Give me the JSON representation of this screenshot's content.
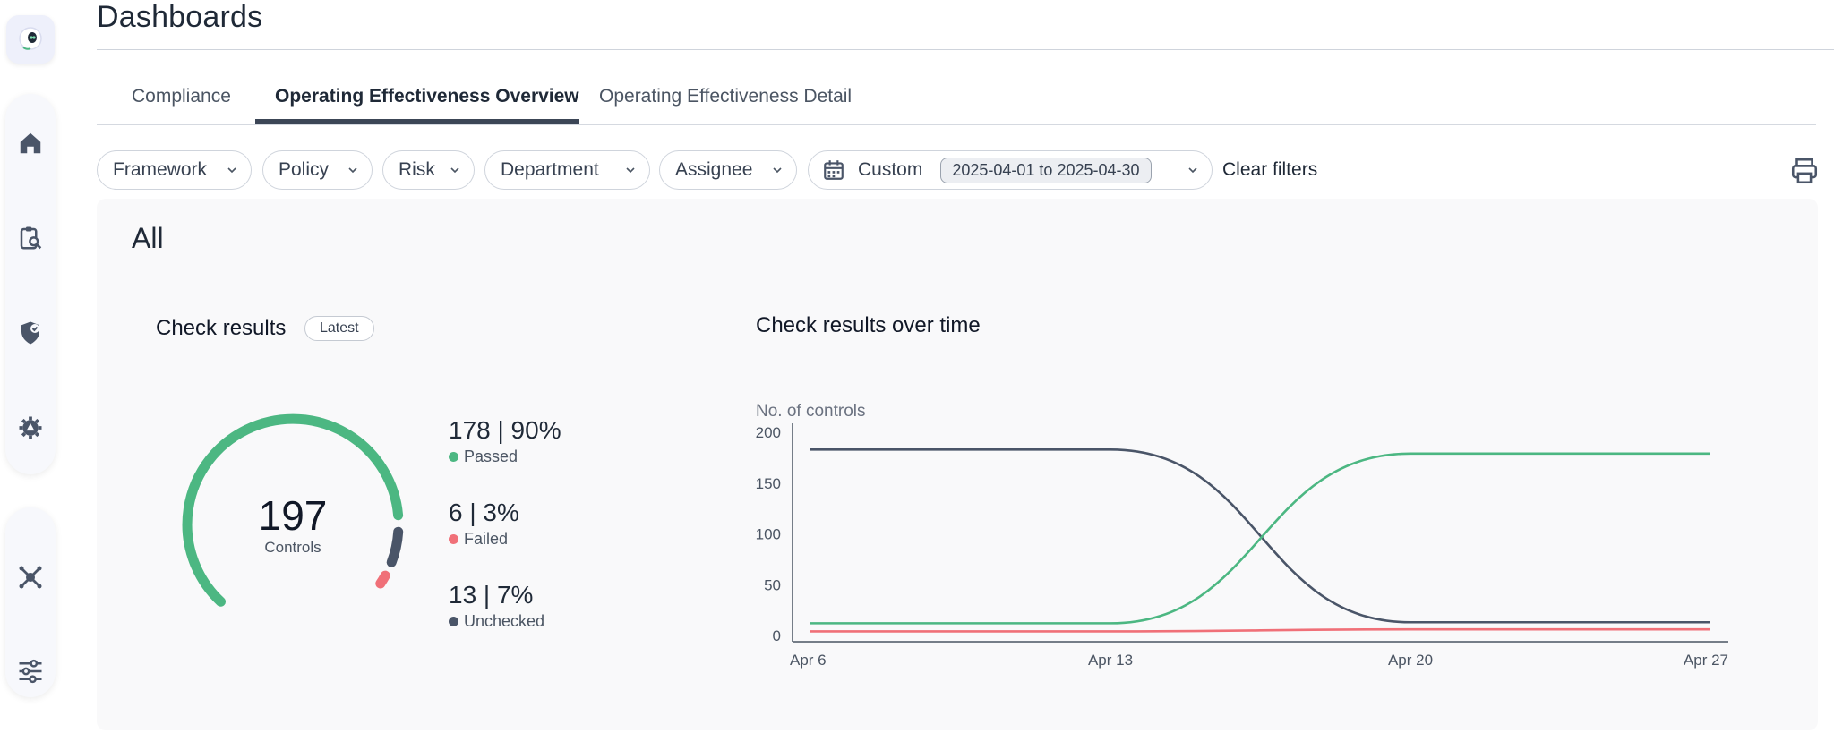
{
  "sidebar": {
    "logo": "app-logo",
    "items": [
      {
        "icon": "home-icon"
      },
      {
        "icon": "clipboard-search-icon"
      },
      {
        "icon": "shield-check-icon"
      },
      {
        "icon": "gear-alert-icon"
      },
      {
        "icon": "integrations-icon"
      },
      {
        "icon": "sliders-icon"
      }
    ]
  },
  "header": {
    "title": "Dashboards"
  },
  "tabs": [
    {
      "label": "Compliance",
      "active": false
    },
    {
      "label": "Operating Effectiveness Overview",
      "active": true
    },
    {
      "label": "Operating Effectiveness Detail",
      "active": false
    }
  ],
  "filters": {
    "framework": "Framework",
    "policy": "Policy",
    "risk": "Risk",
    "department": "Department",
    "assignee": "Assignee",
    "date_mode": "Custom",
    "date_range": "2025-04-01 to 2025-04-30",
    "clear": "Clear filters"
  },
  "panel": {
    "title": "All",
    "check_results": {
      "title": "Check results",
      "badge": "Latest",
      "total": "197",
      "total_label": "Controls",
      "stats": [
        {
          "value": "178 | 90%",
          "label": "Passed",
          "color": "#4cb782"
        },
        {
          "value": "6 | 3%",
          "label": "Failed",
          "color": "#f07078"
        },
        {
          "value": "13 | 7%",
          "label": "Unchecked",
          "color": "#4a5568"
        }
      ]
    },
    "over_time": {
      "title": "Check results over time"
    }
  },
  "chart_data": {
    "type": "line",
    "ylabel": "No. of controls",
    "ylim": [
      0,
      200
    ],
    "yticks": [
      "0",
      "50",
      "100",
      "150",
      "200"
    ],
    "xticks": [
      "Apr 6",
      "Apr 13",
      "Apr 20",
      "Apr 27"
    ],
    "x": [
      "Apr 6",
      "Apr 13",
      "Apr 20",
      "Apr 27"
    ],
    "series": [
      {
        "color": "#4a5568",
        "values": [
          183,
          183,
          13,
          13
        ]
      },
      {
        "color": "#4cb782",
        "values": [
          12,
          12,
          179,
          179
        ]
      },
      {
        "color": "#f07078",
        "values": [
          4,
          4,
          6,
          6
        ]
      }
    ]
  }
}
